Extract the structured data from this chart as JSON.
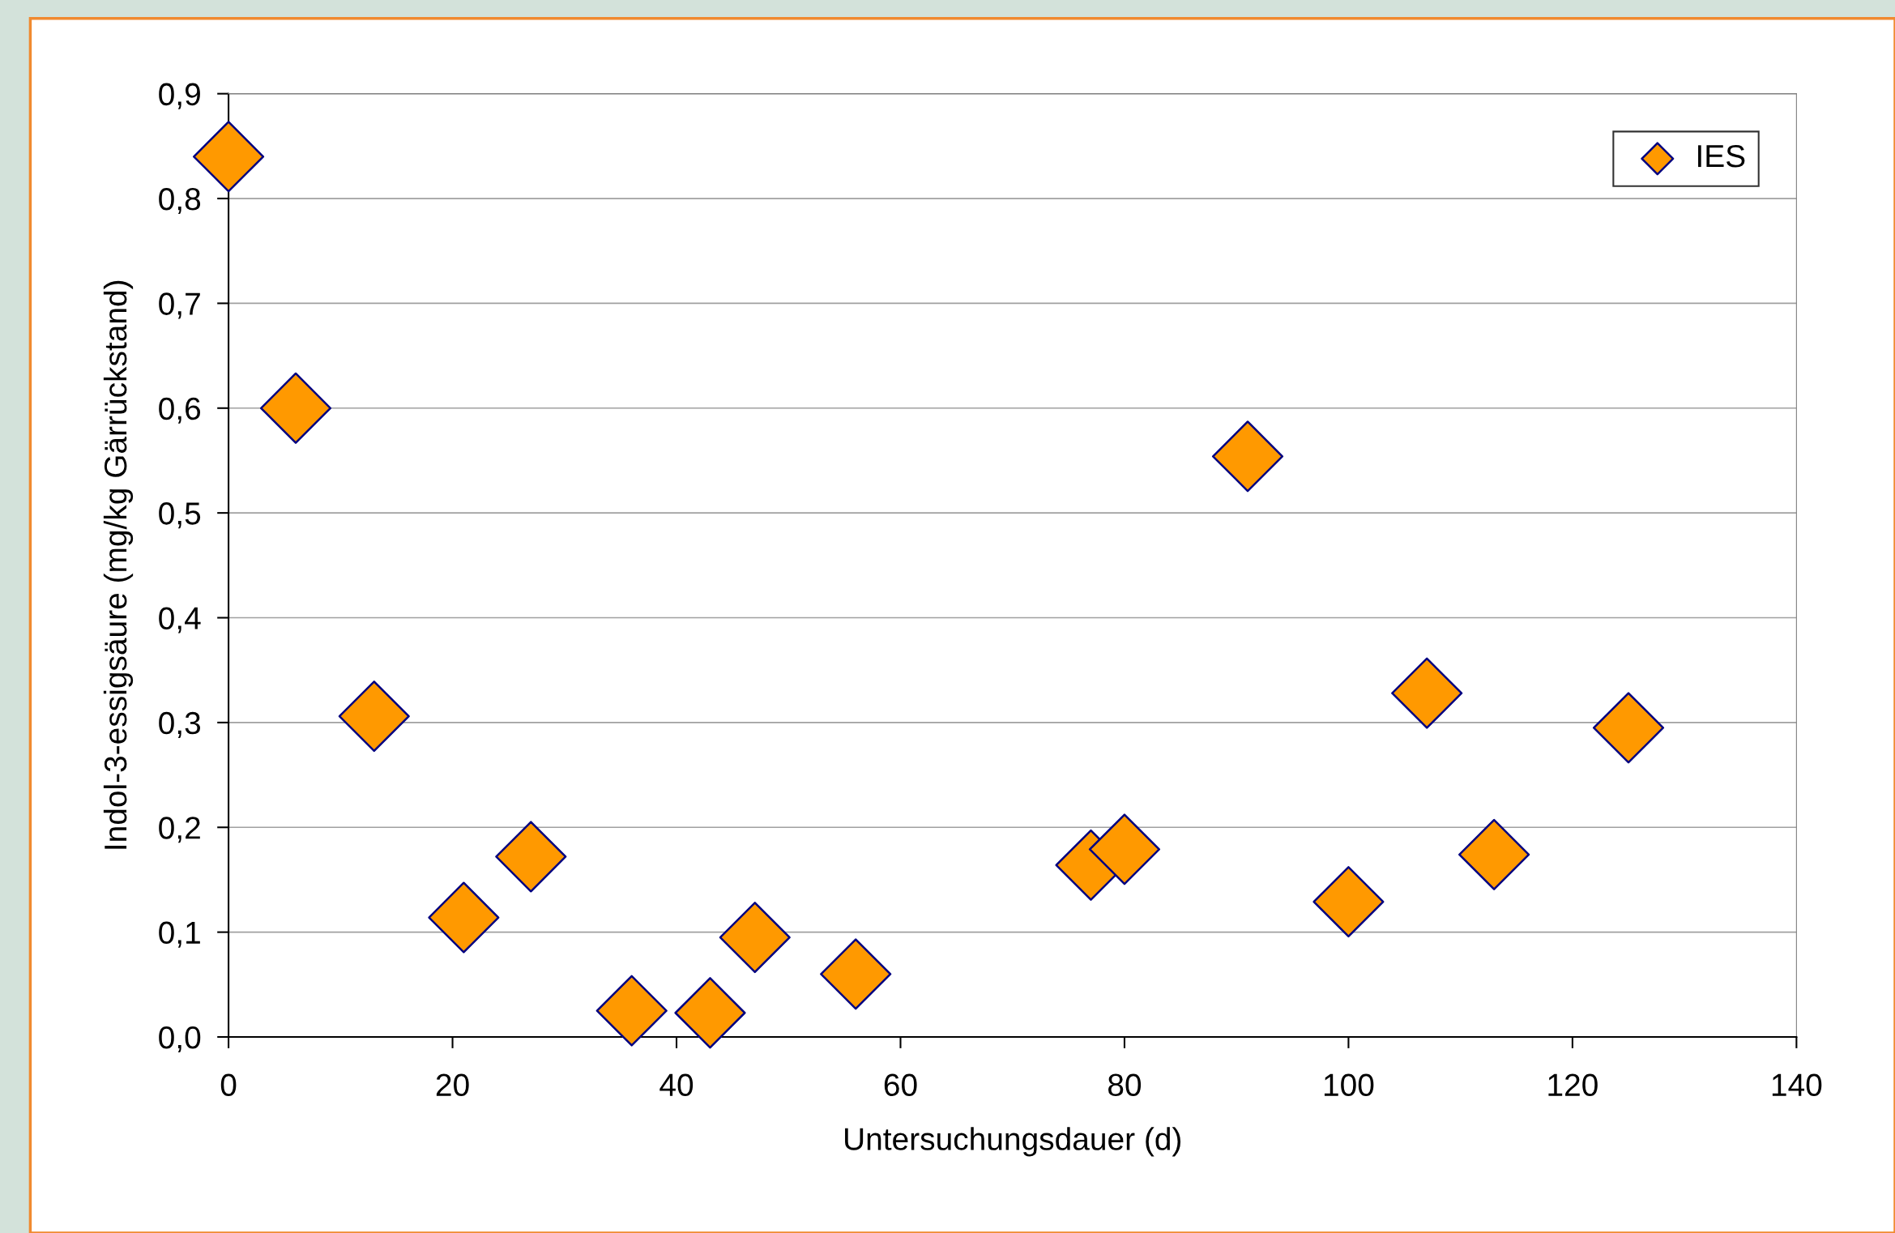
{
  "chart_data": {
    "type": "scatter",
    "xlabel": "Untersuchungsdauer (d)",
    "ylabel": "Indol-3-essigsäure (mg/kg Gärrückstand)",
    "series": [
      {
        "name": "IES",
        "color": "#ff9900",
        "x": [
          0,
          6,
          13,
          21,
          27,
          36,
          43,
          47,
          56,
          77,
          80,
          91,
          100,
          107,
          113,
          125
        ],
        "values": [
          0.84,
          0.6,
          0.306,
          0.114,
          0.172,
          0.025,
          0.023,
          0.095,
          0.06,
          0.164,
          0.179,
          0.554,
          0.129,
          0.328,
          0.174,
          0.295
        ]
      }
    ],
    "marker": "diamond",
    "xlim": [
      0,
      140
    ],
    "xticks": [
      0,
      20,
      40,
      60,
      80,
      100,
      120,
      140
    ],
    "ylim": [
      0,
      0.9
    ],
    "yticks": [
      {
        "value": 0,
        "label": "0,0"
      },
      {
        "value": 0.1,
        "label": "0,1"
      },
      {
        "value": 0.2,
        "label": "0,2"
      },
      {
        "value": 0.3,
        "label": "0,3"
      },
      {
        "value": 0.4,
        "label": "0,4"
      },
      {
        "value": 0.5,
        "label": "0,5"
      },
      {
        "value": 0.6,
        "label": "0,6"
      },
      {
        "value": 0.7,
        "label": "0,7"
      },
      {
        "value": 0.8,
        "label": "0,8"
      },
      {
        "value": 0.9,
        "label": "0,9"
      }
    ],
    "grid": "y",
    "legend": "top right"
  }
}
